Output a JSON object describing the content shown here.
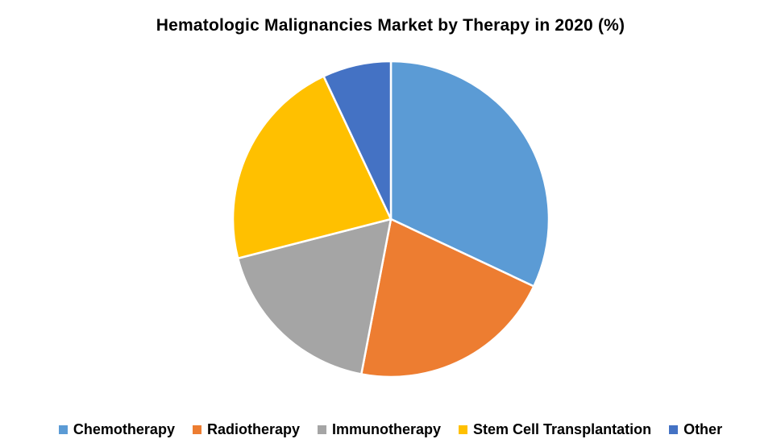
{
  "title": "Hematologic Malignancies Market by Therapy in 2020 (%)",
  "chart_data": {
    "type": "pie",
    "title": "Hematologic Malignancies Market by Therapy in 2020 (%)",
    "labels": [
      "Chemotherapy",
      "Radiotherapy",
      "Immunotherapy",
      "Stem Cell Transplantation",
      "Other"
    ],
    "values": [
      32,
      21,
      18,
      22,
      7
    ],
    "unit": "%",
    "colors": [
      "#5B9BD5",
      "#ED7D31",
      "#A5A5A5",
      "#FFC000",
      "#4472C4"
    ],
    "slice_border_color": "#FFFFFF",
    "legend_position": "bottom",
    "start_angle_deg": 0,
    "direction": "clockwise"
  }
}
